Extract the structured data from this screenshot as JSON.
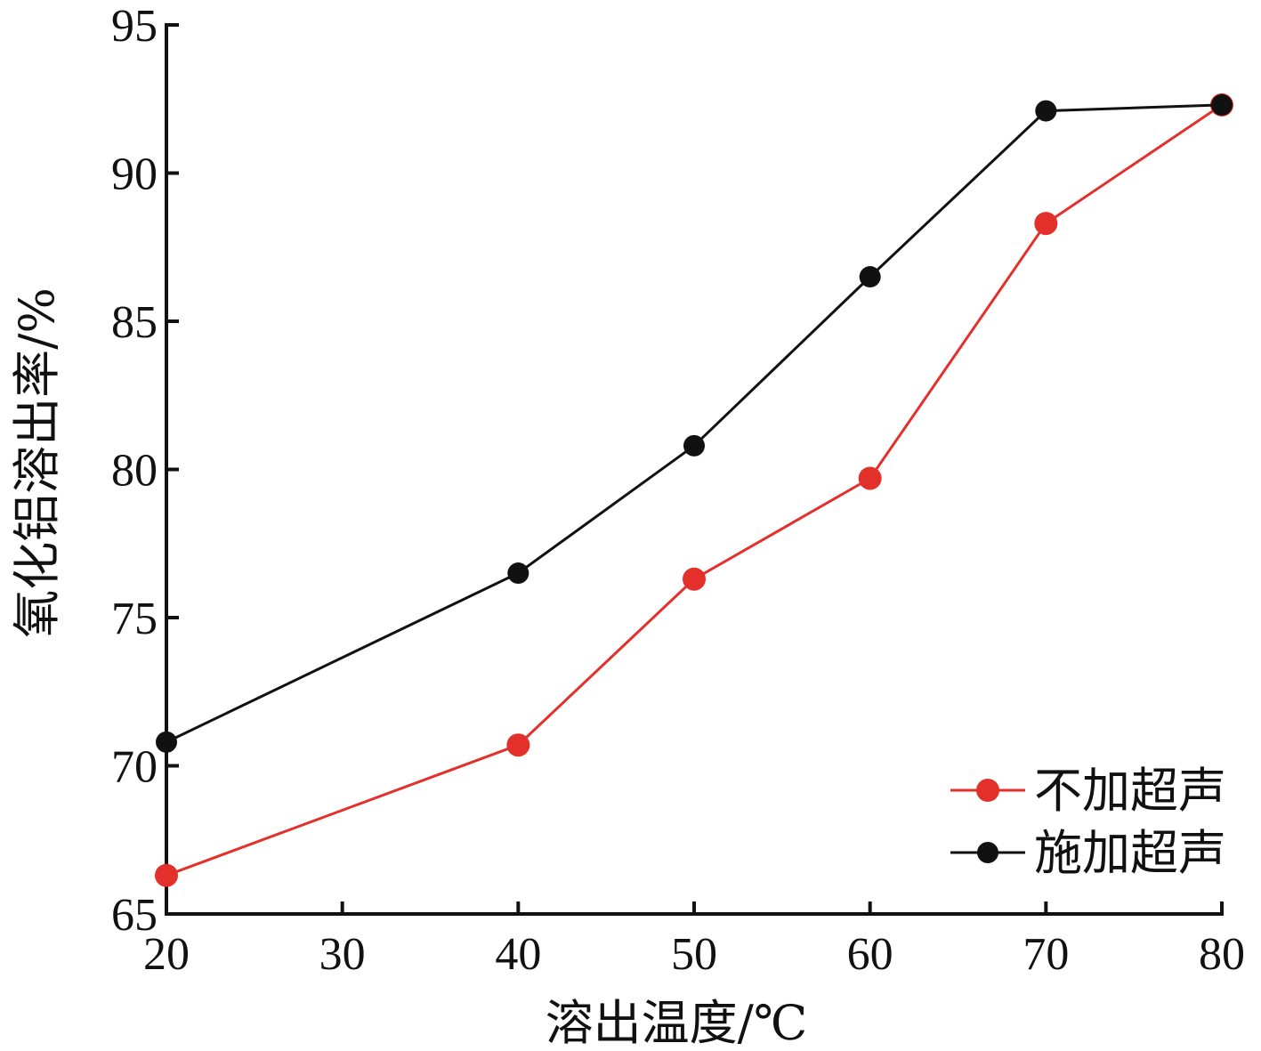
{
  "chart_data": {
    "type": "line",
    "title": "",
    "xlabel": "溶出温度/℃",
    "ylabel": "氧化铝溶出率/%",
    "xlim": [
      20,
      80
    ],
    "ylim": [
      65,
      95
    ],
    "xticks": [
      20,
      30,
      40,
      50,
      60,
      70,
      80
    ],
    "yticks": [
      65,
      70,
      75,
      80,
      85,
      90,
      95
    ],
    "x": [
      20,
      40,
      50,
      60,
      70,
      80
    ],
    "series": [
      {
        "name": "不加超声",
        "color": "#e3302b",
        "values": [
          66.3,
          70.7,
          76.3,
          79.7,
          88.3,
          92.3
        ]
      },
      {
        "name": "施加超声",
        "color": "#111111",
        "values": [
          70.8,
          76.5,
          80.8,
          86.5,
          92.1,
          92.3
        ]
      }
    ],
    "grid": false,
    "legend_position": "bottom-right"
  }
}
